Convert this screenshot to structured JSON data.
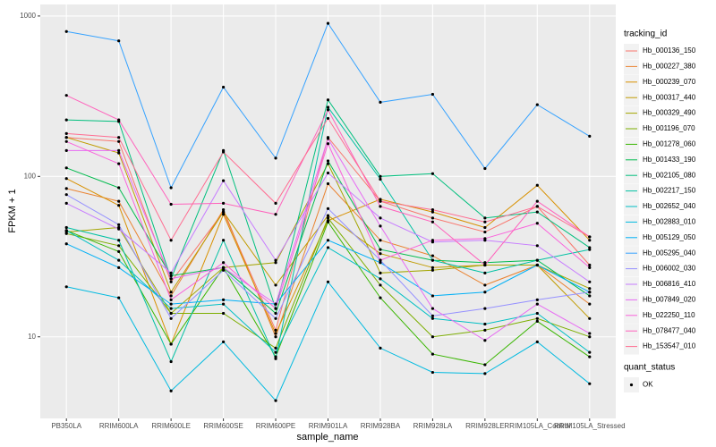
{
  "chart_data": {
    "type": "line",
    "x_label": "sample_name",
    "y_label": "FPKM + 1",
    "log_y": true,
    "grid": true,
    "legend_position": "right",
    "legend_title": "tracking_id",
    "point_legend_title": "quant_status",
    "point_legend_label": "OK",
    "point_color": "#000000",
    "categories": [
      "PB350LA",
      "RRIM600LA",
      "RRIM600LE",
      "RRIM600SE",
      "RRIM600PE",
      "RRIM901LA",
      "RRIM928BA",
      "RRIM928LA",
      "RRIM928LE",
      "RRIM105LA_Control",
      "RRIM105LA_Stressed"
    ],
    "ylim": [
      3.1,
      1180
    ],
    "yticks": [
      10,
      100,
      1000
    ],
    "series": [
      {
        "name": "Hb_000136_150",
        "color": "#F8766D",
        "values": [
          175,
          165,
          22,
          60,
          11,
          175,
          70,
          55,
          45,
          65,
          28
        ]
      },
      {
        "name": "Hb_000227_380",
        "color": "#EA8331",
        "values": [
          84,
          70,
          18,
          62,
          10,
          90,
          40,
          32,
          21,
          28,
          16
        ]
      },
      {
        "name": "Hb_000239_070",
        "color": "#D89000",
        "values": [
          97,
          66,
          9,
          58,
          10.5,
          53,
          72,
          60,
          48,
          88,
          40
        ]
      },
      {
        "name": "Hb_000317_440",
        "color": "#C09B00",
        "values": [
          175,
          140,
          19,
          60,
          21,
          57,
          33,
          27,
          28,
          28,
          13
        ]
      },
      {
        "name": "Hb_000329_490",
        "color": "#A3A500",
        "values": [
          45,
          48,
          14,
          27,
          29,
          120,
          25,
          26,
          28,
          28,
          20
        ]
      },
      {
        "name": "Hb_001196_070",
        "color": "#7CAE00",
        "values": [
          44,
          37,
          14,
          14,
          8.5,
          55,
          21,
          10,
          11,
          13,
          10
        ]
      },
      {
        "name": "Hb_001278_060",
        "color": "#39B600",
        "values": [
          46,
          34,
          9,
          27,
          7.5,
          52,
          17.5,
          7.8,
          6.7,
          12.5,
          7.5
        ]
      },
      {
        "name": "Hb_001433_190",
        "color": "#00BB4E",
        "values": [
          113,
          85,
          24,
          27,
          14,
          125,
          35,
          30,
          29,
          30,
          18
        ]
      },
      {
        "name": "Hb_002105_080",
        "color": "#00BF7D",
        "values": [
          225,
          220,
          23,
          145,
          15,
          300,
          100,
          104,
          55,
          60,
          36
        ]
      },
      {
        "name": "Hb_002217_150",
        "color": "#00C1A3",
        "values": [
          48,
          40,
          7,
          40,
          7.3,
          270,
          96,
          30,
          25,
          30,
          35
        ]
      },
      {
        "name": "Hb_002652_040",
        "color": "#00BFC4",
        "values": [
          46,
          30,
          15,
          16,
          8,
          36,
          23,
          13,
          12,
          14,
          8
        ]
      },
      {
        "name": "Hb_002883_010",
        "color": "#00BAE0",
        "values": [
          20.5,
          17.5,
          4.6,
          9.3,
          4.0,
          22,
          8.5,
          6.0,
          5.9,
          9.3,
          5.1
        ]
      },
      {
        "name": "Hb_005129_050",
        "color": "#00B0F6",
        "values": [
          38,
          27,
          16,
          17,
          16,
          40,
          29,
          18,
          19,
          28,
          19
        ]
      },
      {
        "name": "Hb_005295_040",
        "color": "#35A2FF",
        "values": [
          800,
          700,
          85,
          360,
          130,
          900,
          290,
          325,
          112,
          280,
          178
        ]
      },
      {
        "name": "Hb_006002_030",
        "color": "#9590FF",
        "values": [
          77,
          50,
          13,
          26,
          13,
          63,
          30,
          13.5,
          15,
          17,
          19
        ]
      },
      {
        "name": "Hb_006816_410",
        "color": "#C77CFF",
        "values": [
          68,
          47,
          25,
          94,
          30,
          105,
          55,
          39,
          40,
          37,
          22
        ]
      },
      {
        "name": "Hb_007849_020",
        "color": "#E76BF3",
        "values": [
          145,
          145,
          23,
          27,
          16,
          172,
          49,
          15,
          9.5,
          16,
          10.5
        ]
      },
      {
        "name": "Hb_022250_110",
        "color": "#FA62DB",
        "values": [
          165,
          120,
          17,
          29,
          15,
          160,
          30,
          40,
          41,
          51,
          27
        ]
      },
      {
        "name": "Hb_078477_040",
        "color": "#FF62BC",
        "values": [
          320,
          225,
          67,
          68,
          58,
          260,
          65,
          52,
          28,
          70,
          42
        ]
      },
      {
        "name": "Hb_153547_010",
        "color": "#FF6C91",
        "values": [
          185,
          175,
          40,
          142,
          68,
          230,
          70,
          62,
          52,
          65,
          42
        ]
      }
    ]
  }
}
